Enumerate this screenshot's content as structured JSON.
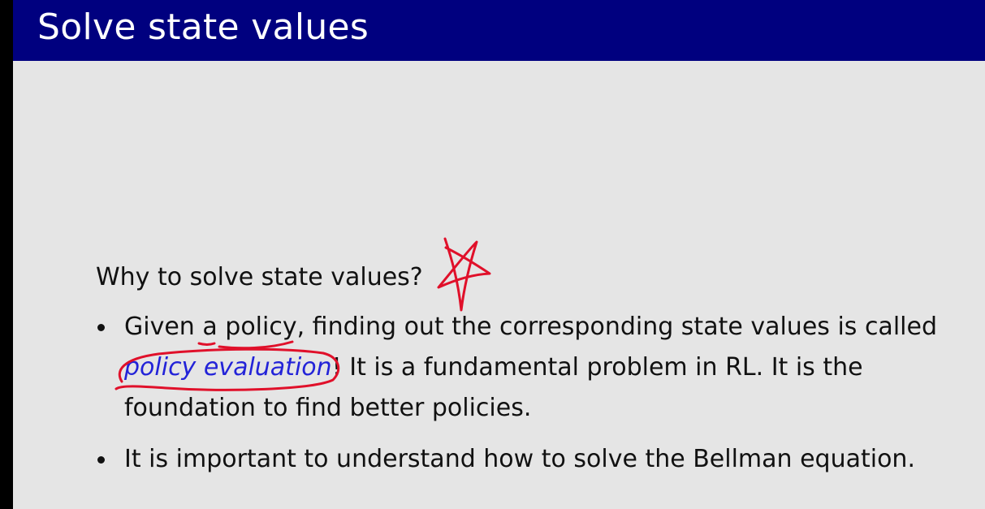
{
  "slide": {
    "title": "Solve state values",
    "question": "Why to solve state values?",
    "bullet1": {
      "line1_pre": "Given ",
      "line1_a": "a",
      "line1_sp": " ",
      "line1_policy": "policy",
      "line1_post": ", finding out the corresponding state values is called",
      "line2_term": "policy evaluation",
      "line2_post": "! It is a fundamental problem in RL. It is the",
      "line3": "foundation to find better policies."
    },
    "bullet2": "It is important to understand how to solve the Bellman equation."
  },
  "colors": {
    "title_bar": "#00007f",
    "background": "#e5e5e5",
    "emphasis": "#2323d8",
    "annotation": "#e0102a"
  }
}
